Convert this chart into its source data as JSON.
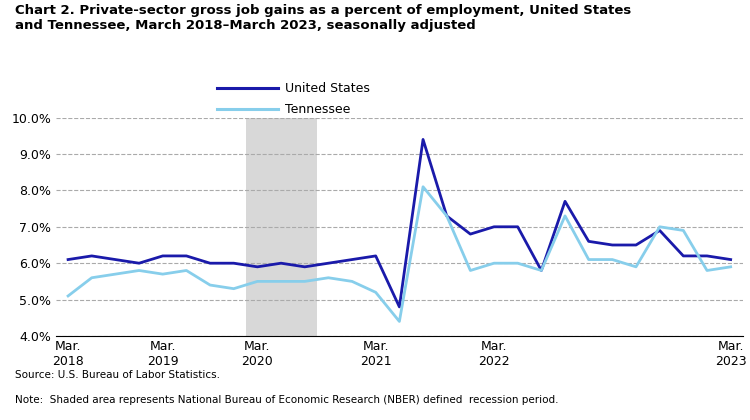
{
  "title_line1": "Chart 2. Private-sector gross job gains as a percent of employment, United States",
  "title_line2": "and Tennessee, March 2018–March 2023, seasonally adjusted",
  "us_values": [
    6.1,
    6.2,
    6.1,
    6.0,
    6.2,
    6.2,
    6.0,
    6.0,
    5.9,
    6.0,
    5.9,
    6.0,
    6.1,
    6.2,
    4.8,
    9.4,
    7.3,
    6.8,
    7.0,
    7.0,
    5.8,
    7.7,
    6.6,
    6.5,
    6.5,
    6.9,
    6.2,
    6.2,
    6.1
  ],
  "tn_values": [
    5.1,
    5.6,
    5.7,
    5.8,
    5.7,
    5.8,
    5.4,
    5.3,
    5.5,
    5.5,
    5.5,
    5.6,
    5.5,
    5.2,
    4.4,
    8.1,
    7.3,
    5.8,
    6.0,
    6.0,
    5.8,
    7.3,
    6.1,
    6.1,
    5.9,
    7.0,
    6.9,
    5.8,
    5.9
  ],
  "us_color": "#1a1aaa",
  "tn_color": "#87CEEB",
  "recession_color": "#D8D8D8",
  "recession_x_start": 8,
  "recession_x_end": 10,
  "ylim": [
    4.0,
    10.0
  ],
  "yticks": [
    4.0,
    5.0,
    6.0,
    7.0,
    8.0,
    9.0,
    10.0
  ],
  "xtick_positions": [
    0,
    4,
    8,
    13,
    18,
    23,
    28
  ],
  "xtick_labels": [
    "Mar.\n2018",
    "Mar.\n2019",
    "Mar.\n2020",
    "Mar.\n2021",
    "Mar.\n2022",
    "",
    "Mar.\n2023"
  ],
  "legend_labels": [
    "United States",
    "Tennessee"
  ],
  "source": "Source: U.S. Bureau of Labor Statistics.",
  "note": "Note:  Shaded area represents National Bureau of Economic Research (NBER) defined  recession period."
}
